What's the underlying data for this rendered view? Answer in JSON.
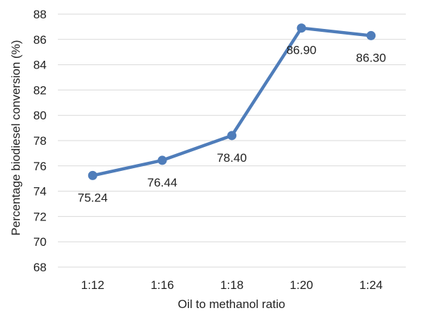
{
  "chart_data": {
    "type": "line",
    "categories": [
      "1:12",
      "1:16",
      "1:18",
      "1:20",
      "1:24"
    ],
    "series": [
      {
        "values": [
          75.24,
          76.44,
          78.4,
          86.9,
          86.3
        ],
        "data_labels": [
          "75.24",
          "76.44",
          "78.40",
          "86.90",
          "86.30"
        ],
        "color": "#4f7dba"
      }
    ],
    "xlabel": "Oil to methanol ratio",
    "ylabel": "Percentage biodiesel conversion (%)",
    "ylim": [
      68,
      88
    ],
    "yticks": [
      "68",
      "70",
      "72",
      "74",
      "76",
      "78",
      "80",
      "82",
      "84",
      "86",
      "88"
    ],
    "grid": true,
    "gridline_color": "#d9d9d9",
    "legend": false
  }
}
